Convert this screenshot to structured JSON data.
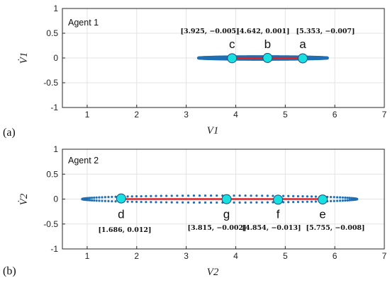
{
  "chart_data": [
    {
      "type": "scatter",
      "panel_label": "(a)",
      "agent_label": "Agent 1",
      "xlabel": "V1",
      "ylabel": "V̇1",
      "xlim": [
        0.5,
        7
      ],
      "ylim": [
        -1,
        1
      ],
      "xticks": [
        1,
        2,
        3,
        4,
        5,
        6,
        7
      ],
      "yticks": [
        1,
        0.5,
        0,
        -0.5,
        -1
      ],
      "xtick_labels": [
        "1",
        "2",
        "3",
        "4",
        "5",
        "6",
        "7"
      ],
      "ytick_labels": [
        "1",
        "0.5",
        "0",
        "-0.5",
        "-1"
      ],
      "grid": true,
      "trajectory": {
        "xmin": 3.25,
        "xmax": 5.85,
        "amp": 0.03,
        "color": "#1f6fb4"
      },
      "line": {
        "x": [
          3.925,
          5.353
        ],
        "color": "#d62728"
      },
      "points": [
        {
          "name": "c",
          "x": 3.925,
          "y": -0.005,
          "annotation": "[3.925, −0.005]"
        },
        {
          "name": "b",
          "x": 4.642,
          "y": 0.001,
          "annotation": "[4.642, 0.001]"
        },
        {
          "name": "a",
          "x": 5.353,
          "y": -0.007,
          "annotation": "[5.353, −0.007]"
        }
      ],
      "marker_color": "#19e0e0"
    },
    {
      "type": "scatter",
      "panel_label": "(b)",
      "agent_label": "Agent 2",
      "xlabel": "V2",
      "ylabel": "V̇2",
      "xlim": [
        0.5,
        7
      ],
      "ylim": [
        -1,
        1
      ],
      "xticks": [
        1,
        2,
        3,
        4,
        5,
        6,
        7
      ],
      "yticks": [
        1,
        0.5,
        0,
        -0.5,
        -1
      ],
      "xtick_labels": [
        "1",
        "2",
        "3",
        "4",
        "5",
        "6",
        "7"
      ],
      "ytick_labels": [
        "1",
        "0.5",
        "0",
        "-0.5",
        "-1"
      ],
      "grid": true,
      "trajectory": {
        "xmin": 0.9,
        "xmax": 6.45,
        "amp": 0.07,
        "color": "#1f6fb4"
      },
      "line": {
        "x": [
          1.686,
          5.755
        ],
        "color": "#d62728"
      },
      "points": [
        {
          "name": "d",
          "x": 1.686,
          "y": 0.012,
          "annotation": "[1.686, 0.012]"
        },
        {
          "name": "g",
          "x": 3.815,
          "y": -0.002,
          "annotation": "[3.815, −0.002]"
        },
        {
          "name": "f",
          "x": 4.854,
          "y": -0.013,
          "annotation": "[4.854, −0.013]"
        },
        {
          "name": "e",
          "x": 5.755,
          "y": -0.008,
          "annotation": "[5.755, −0.008]"
        }
      ],
      "marker_color": "#19e0e0"
    }
  ]
}
